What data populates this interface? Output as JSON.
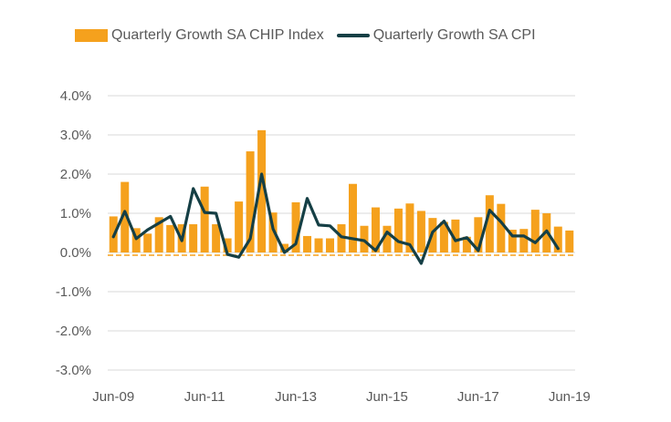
{
  "chart_data": {
    "type": "bar",
    "x": [
      "Jun-09",
      "Sep-09",
      "Dec-09",
      "Mar-10",
      "Jun-10",
      "Sep-10",
      "Dec-10",
      "Mar-11",
      "Jun-11",
      "Sep-11",
      "Dec-11",
      "Mar-12",
      "Jun-12",
      "Sep-12",
      "Dec-12",
      "Mar-13",
      "Jun-13",
      "Sep-13",
      "Dec-13",
      "Mar-14",
      "Jun-14",
      "Sep-14",
      "Dec-14",
      "Mar-15",
      "Jun-15",
      "Sep-15",
      "Dec-15",
      "Mar-16",
      "Jun-16",
      "Sep-16",
      "Dec-16",
      "Mar-17",
      "Jun-17",
      "Sep-17",
      "Dec-17",
      "Mar-18",
      "Jun-18",
      "Sep-18",
      "Dec-18",
      "Mar-19",
      "Jun-19"
    ],
    "xticks": [
      "Jun-09",
      "Jun-11",
      "Jun-13",
      "Jun-15",
      "Jun-17",
      "Jun-19"
    ],
    "yticks": [
      "4.0%",
      "3.0%",
      "2.0%",
      "1.0%",
      "0.0%",
      "-1.0%",
      "-2.0%",
      "-3.0%"
    ],
    "ylim": [
      -3.0,
      4.0
    ],
    "grid": true,
    "legend_position": "top",
    "series": [
      {
        "name": "Quarterly Growth SA CHIP Index",
        "kind": "bar",
        "color": "#F5A11D",
        "values": [
          0.92,
          1.8,
          0.62,
          0.48,
          0.9,
          0.7,
          0.72,
          0.72,
          1.68,
          0.72,
          0.36,
          1.3,
          2.58,
          3.12,
          1.02,
          0.22,
          1.28,
          0.42,
          0.36,
          0.36,
          0.72,
          1.75,
          0.68,
          1.15,
          0.68,
          1.12,
          1.25,
          1.06,
          0.88,
          0.78,
          0.84,
          0.4,
          0.9,
          1.46,
          1.24,
          0.58,
          0.6,
          1.09,
          1.0,
          0.66,
          0.56
        ]
      },
      {
        "name": "Quarterly Growth SA CPI",
        "kind": "line",
        "color": "#153F45",
        "values": [
          0.4,
          1.05,
          0.35,
          0.58,
          0.75,
          0.92,
          0.3,
          1.63,
          1.02,
          1.0,
          -0.05,
          -0.12,
          0.35,
          2.0,
          0.6,
          0.0,
          0.22,
          1.38,
          0.7,
          0.68,
          0.4,
          0.35,
          0.3,
          0.05,
          0.52,
          0.28,
          0.2,
          -0.28,
          0.52,
          0.8,
          0.3,
          0.38,
          0.05,
          1.08,
          0.78,
          0.42,
          0.42,
          0.25,
          0.55,
          0.1,
          null
        ]
      }
    ]
  }
}
